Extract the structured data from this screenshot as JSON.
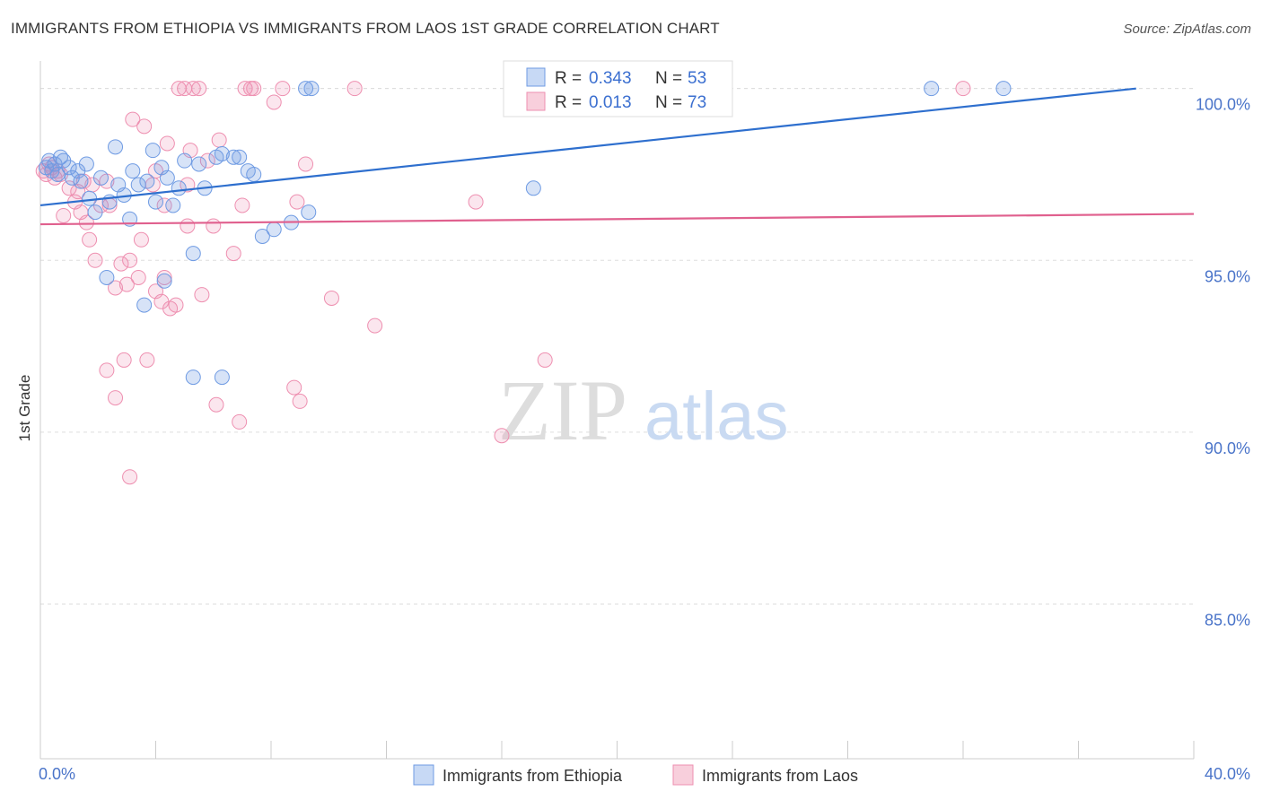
{
  "header": {
    "title": "IMMIGRANTS FROM ETHIOPIA VS IMMIGRANTS FROM LAOS 1ST GRADE CORRELATION CHART",
    "source": "Source: ZipAtlas.com"
  },
  "watermark": {
    "zip": "ZIP",
    "atlas": "atlas"
  },
  "legend": {
    "r_label": "R =",
    "n_label": "N =",
    "series": [
      {
        "r": "0.343",
        "n": "53"
      },
      {
        "r": "0.013",
        "n": "73"
      }
    ]
  },
  "chart_data": {
    "type": "scatter",
    "title": "IMMIGRANTS FROM ETHIOPIA VS IMMIGRANTS FROM LAOS 1ST GRADE CORRELATION CHART",
    "xlabel": "",
    "ylabel": "1st Grade",
    "xlim": [
      0,
      40
    ],
    "ylim": [
      80.5,
      100.8
    ],
    "x_tick_labels": [
      "0.0%",
      "40.0%"
    ],
    "y_ticks": [
      85,
      90,
      95,
      100
    ],
    "y_tick_labels": [
      "85.0%",
      "90.0%",
      "95.0%",
      "100.0%"
    ],
    "grid": true,
    "legend_position": "top-center",
    "colors": {
      "ethiopia": "#6f9be3",
      "laos": "#ee8fb0",
      "ethiopia_line": "#2e6fce",
      "laos_line": "#e0608e"
    },
    "series": [
      {
        "name": "Immigrants from Ethiopia",
        "trend": {
          "x": [
            0,
            38
          ],
          "y": [
            96.6,
            100.0
          ]
        },
        "points": [
          [
            0.2,
            97.7
          ],
          [
            0.3,
            97.9
          ],
          [
            0.4,
            97.6
          ],
          [
            0.5,
            97.8
          ],
          [
            0.6,
            97.5
          ],
          [
            0.7,
            98.0
          ],
          [
            0.8,
            97.9
          ],
          [
            1.0,
            97.7
          ],
          [
            1.1,
            97.4
          ],
          [
            1.3,
            97.6
          ],
          [
            1.4,
            97.3
          ],
          [
            1.6,
            97.8
          ],
          [
            1.7,
            96.8
          ],
          [
            1.9,
            96.4
          ],
          [
            2.1,
            97.4
          ],
          [
            2.4,
            96.7
          ],
          [
            2.6,
            98.3
          ],
          [
            2.7,
            97.2
          ],
          [
            2.9,
            96.9
          ],
          [
            3.1,
            96.2
          ],
          [
            3.2,
            97.6
          ],
          [
            3.4,
            97.2
          ],
          [
            3.7,
            97.3
          ],
          [
            3.9,
            98.2
          ],
          [
            4.0,
            96.7
          ],
          [
            4.2,
            97.7
          ],
          [
            4.4,
            97.4
          ],
          [
            4.6,
            96.6
          ],
          [
            4.8,
            97.1
          ],
          [
            5.0,
            97.9
          ],
          [
            5.3,
            95.2
          ],
          [
            5.5,
            97.8
          ],
          [
            5.7,
            97.1
          ],
          [
            6.1,
            98.0
          ],
          [
            6.3,
            98.1
          ],
          [
            6.7,
            98.0
          ],
          [
            6.9,
            98.0
          ],
          [
            7.2,
            97.6
          ],
          [
            7.4,
            97.5
          ],
          [
            7.7,
            95.7
          ],
          [
            8.1,
            95.9
          ],
          [
            8.7,
            96.1
          ],
          [
            9.2,
            100.0
          ],
          [
            9.4,
            100.0
          ],
          [
            9.3,
            96.4
          ],
          [
            2.3,
            94.5
          ],
          [
            3.6,
            93.7
          ],
          [
            4.3,
            94.4
          ],
          [
            5.3,
            91.6
          ],
          [
            6.3,
            91.6
          ],
          [
            17.1,
            97.1
          ],
          [
            23.3,
            100.0
          ],
          [
            30.9,
            100.0
          ],
          [
            33.4,
            100.0
          ]
        ]
      },
      {
        "name": "Immigrants from Laos",
        "trend": {
          "x": [
            0,
            40
          ],
          "y": [
            96.05,
            96.35
          ]
        },
        "points": [
          [
            0.1,
            97.6
          ],
          [
            0.2,
            97.5
          ],
          [
            0.3,
            97.8
          ],
          [
            0.4,
            97.7
          ],
          [
            0.5,
            97.4
          ],
          [
            0.6,
            97.6
          ],
          [
            0.7,
            97.5
          ],
          [
            0.8,
            96.3
          ],
          [
            1.0,
            97.1
          ],
          [
            1.2,
            96.7
          ],
          [
            1.3,
            97.0
          ],
          [
            1.4,
            96.4
          ],
          [
            1.5,
            97.3
          ],
          [
            1.6,
            96.1
          ],
          [
            1.7,
            95.6
          ],
          [
            1.8,
            97.2
          ],
          [
            1.9,
            95.0
          ],
          [
            2.1,
            96.6
          ],
          [
            2.3,
            97.3
          ],
          [
            2.4,
            96.6
          ],
          [
            2.6,
            94.2
          ],
          [
            2.8,
            94.9
          ],
          [
            2.9,
            92.1
          ],
          [
            3.0,
            94.3
          ],
          [
            3.1,
            95.0
          ],
          [
            3.2,
            99.1
          ],
          [
            3.4,
            94.5
          ],
          [
            3.5,
            95.6
          ],
          [
            3.6,
            98.9
          ],
          [
            3.7,
            92.1
          ],
          [
            3.9,
            97.2
          ],
          [
            4.0,
            97.6
          ],
          [
            4.2,
            93.8
          ],
          [
            4.3,
            96.6
          ],
          [
            4.4,
            98.4
          ],
          [
            4.5,
            93.6
          ],
          [
            4.7,
            93.7
          ],
          [
            4.8,
            100.0
          ],
          [
            5.0,
            100.0
          ],
          [
            5.1,
            97.2
          ],
          [
            5.2,
            98.2
          ],
          [
            5.3,
            100.0
          ],
          [
            5.5,
            100.0
          ],
          [
            5.6,
            94.0
          ],
          [
            5.8,
            97.9
          ],
          [
            6.0,
            96.0
          ],
          [
            6.2,
            98.5
          ],
          [
            6.7,
            95.2
          ],
          [
            6.9,
            90.3
          ],
          [
            7.1,
            100.0
          ],
          [
            7.3,
            100.0
          ],
          [
            7.4,
            100.0
          ],
          [
            8.1,
            99.6
          ],
          [
            8.4,
            100.0
          ],
          [
            8.8,
            91.3
          ],
          [
            8.9,
            96.7
          ],
          [
            9.0,
            90.9
          ],
          [
            10.1,
            93.9
          ],
          [
            10.9,
            100.0
          ],
          [
            11.6,
            93.1
          ],
          [
            15.1,
            96.7
          ],
          [
            16.0,
            89.9
          ],
          [
            17.5,
            92.1
          ],
          [
            2.3,
            91.8
          ],
          [
            2.6,
            91.0
          ],
          [
            3.1,
            88.7
          ],
          [
            4.0,
            94.1
          ],
          [
            4.3,
            94.5
          ],
          [
            5.1,
            96.0
          ],
          [
            6.1,
            90.8
          ],
          [
            7.0,
            96.6
          ],
          [
            9.2,
            97.8
          ],
          [
            32.0,
            100.0
          ]
        ]
      }
    ]
  }
}
